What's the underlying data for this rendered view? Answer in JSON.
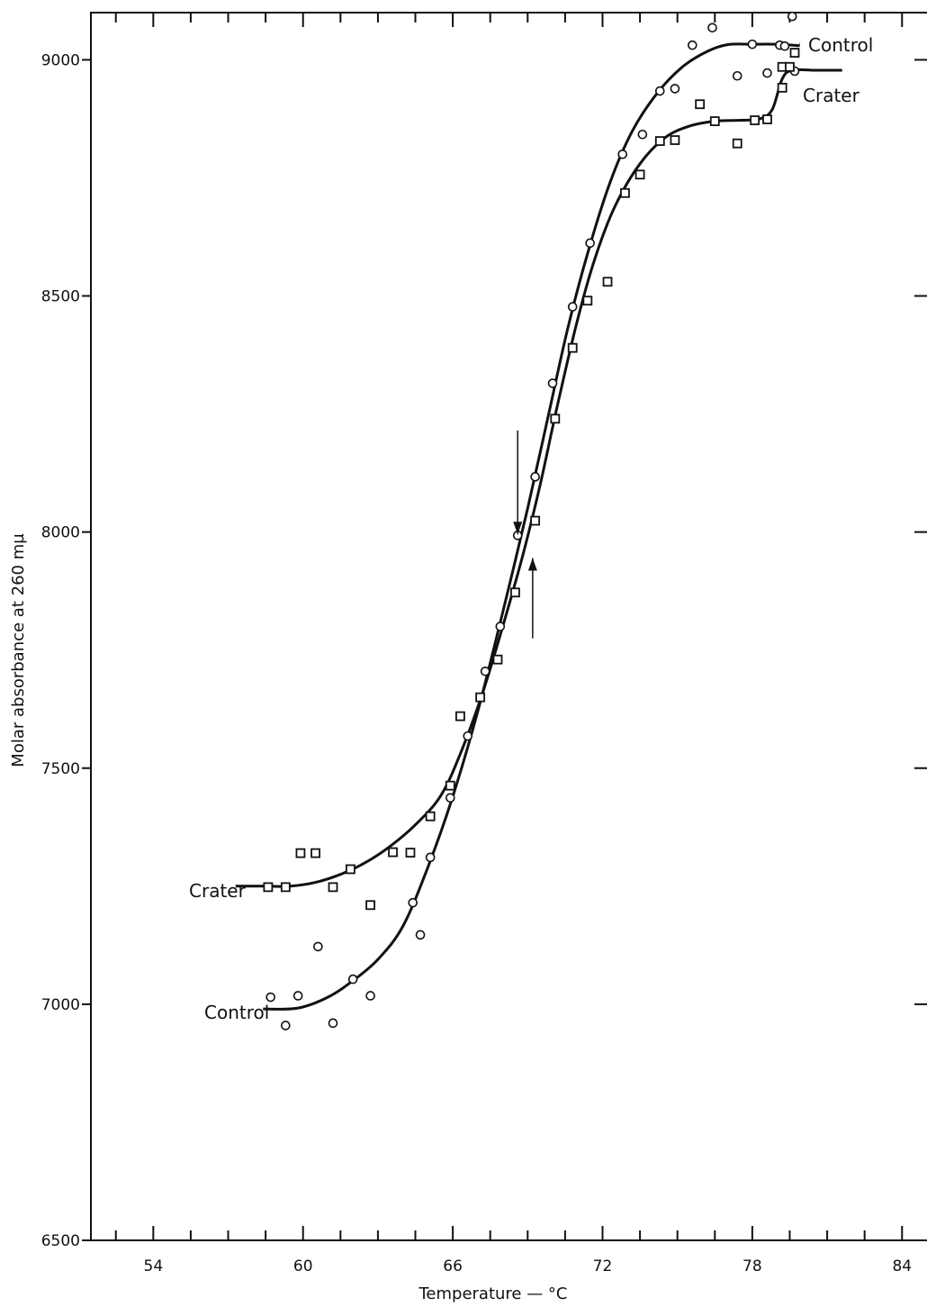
{
  "chart_data": {
    "type": "scatter",
    "title": "",
    "xlabel": "Temperature — °C",
    "ylabel": "Molar absorbance at 260 mµ",
    "xlim": [
      51.5,
      85
    ],
    "ylim": [
      6500,
      9100
    ],
    "x_ticks": [
      54,
      60,
      66,
      72,
      78,
      84
    ],
    "x_ticks_labels": [
      "54",
      "60",
      "66",
      "72",
      "78",
      "84"
    ],
    "x_minor_step": 1.5,
    "y_ticks": [
      6500,
      7000,
      7500,
      8000,
      8500,
      9000
    ],
    "y_ticks_labels": [
      "6500",
      "7000",
      "7500",
      "8000",
      "8500",
      "9000"
    ],
    "grid": false,
    "series": [
      {
        "name": "Control",
        "marker": "circle",
        "points": [
          [
            58.7,
            7015
          ],
          [
            59.3,
            6955
          ],
          [
            59.8,
            7018
          ],
          [
            60.6,
            7122
          ],
          [
            61.2,
            6960
          ],
          [
            62.0,
            7053
          ],
          [
            62.7,
            7018
          ],
          [
            64.4,
            7215
          ],
          [
            64.7,
            7147
          ],
          [
            65.1,
            7311
          ],
          [
            65.9,
            7437
          ],
          [
            66.6,
            7568
          ],
          [
            67.3,
            7705
          ],
          [
            67.9,
            7800
          ],
          [
            68.6,
            7993
          ],
          [
            69.3,
            8117
          ],
          [
            70.0,
            8315
          ],
          [
            70.8,
            8477
          ],
          [
            71.5,
            8612
          ],
          [
            72.8,
            8800
          ],
          [
            73.6,
            8842
          ],
          [
            74.3,
            8934
          ],
          [
            74.9,
            8939
          ],
          [
            75.6,
            9031
          ],
          [
            76.4,
            9068
          ],
          [
            77.4,
            8966
          ],
          [
            78.0,
            9033
          ],
          [
            78.6,
            8972
          ],
          [
            79.1,
            9031
          ],
          [
            79.3,
            9029
          ],
          [
            79.6,
            9092
          ],
          [
            79.7,
            8976
          ]
        ],
        "curve": [
          [
            58.4,
            6990
          ],
          [
            59.8,
            6992
          ],
          [
            61.0,
            7015
          ],
          [
            62.0,
            7050
          ],
          [
            63.0,
            7095
          ],
          [
            64.0,
            7165
          ],
          [
            65.0,
            7290
          ],
          [
            66.0,
            7440
          ],
          [
            67.0,
            7620
          ],
          [
            68.0,
            7830
          ],
          [
            69.0,
            8050
          ],
          [
            69.8,
            8240
          ],
          [
            70.6,
            8430
          ],
          [
            71.4,
            8590
          ],
          [
            72.3,
            8740
          ],
          [
            73.2,
            8850
          ],
          [
            74.2,
            8930
          ],
          [
            75.2,
            8985
          ],
          [
            76.2,
            9018
          ],
          [
            77.0,
            9032
          ],
          [
            78.0,
            9033
          ],
          [
            79.0,
            9033
          ],
          [
            79.9,
            9030
          ]
        ],
        "label_text": "Control",
        "label2_text": "Control"
      },
      {
        "name": "Crater",
        "marker": "square",
        "points": [
          [
            58.6,
            7248
          ],
          [
            59.3,
            7248
          ],
          [
            59.9,
            7320
          ],
          [
            60.5,
            7320
          ],
          [
            61.2,
            7248
          ],
          [
            61.9,
            7286
          ],
          [
            62.7,
            7210
          ],
          [
            63.6,
            7322
          ],
          [
            64.3,
            7321
          ],
          [
            65.1,
            7398
          ],
          [
            65.9,
            7463
          ],
          [
            66.3,
            7610
          ],
          [
            67.1,
            7650
          ],
          [
            67.8,
            7730
          ],
          [
            68.5,
            7872
          ],
          [
            69.3,
            8024
          ],
          [
            70.1,
            8240
          ],
          [
            70.8,
            8390
          ],
          [
            71.4,
            8490
          ],
          [
            72.2,
            8530
          ],
          [
            72.9,
            8718
          ],
          [
            73.5,
            8757
          ],
          [
            74.3,
            8828
          ],
          [
            74.9,
            8830
          ],
          [
            75.9,
            8906
          ],
          [
            76.5,
            8870
          ],
          [
            77.4,
            8823
          ],
          [
            78.1,
            8872
          ],
          [
            78.6,
            8874
          ],
          [
            79.2,
            8941
          ],
          [
            79.2,
            8985
          ],
          [
            79.5,
            8985
          ],
          [
            79.7,
            9015
          ]
        ],
        "curve": [
          [
            57.3,
            7250
          ],
          [
            58.5,
            7250
          ],
          [
            59.5,
            7250
          ],
          [
            60.5,
            7258
          ],
          [
            61.5,
            7275
          ],
          [
            62.5,
            7300
          ],
          [
            63.5,
            7335
          ],
          [
            64.5,
            7380
          ],
          [
            65.5,
            7440
          ],
          [
            66.3,
            7530
          ],
          [
            67.2,
            7660
          ],
          [
            68.0,
            7800
          ],
          [
            68.8,
            7950
          ],
          [
            69.5,
            8100
          ],
          [
            70.2,
            8270
          ],
          [
            71.0,
            8450
          ],
          [
            71.7,
            8580
          ],
          [
            72.5,
            8690
          ],
          [
            73.5,
            8780
          ],
          [
            74.5,
            8835
          ],
          [
            75.5,
            8860
          ],
          [
            76.5,
            8870
          ],
          [
            77.5,
            8872
          ],
          [
            78.3,
            8875
          ],
          [
            78.8,
            8895
          ],
          [
            79.2,
            8960
          ],
          [
            79.6,
            8978
          ],
          [
            80.5,
            8978
          ],
          [
            81.6,
            8978
          ]
        ],
        "label_text": "Crater",
        "label2_text": "Crater"
      }
    ],
    "annotations": [
      {
        "type": "arrow-down",
        "x": 68.6,
        "y_from": 8215,
        "y_to": 7995
      },
      {
        "type": "arrow-up",
        "x": 69.2,
        "y_from": 7775,
        "y_to": 7945
      }
    ]
  }
}
